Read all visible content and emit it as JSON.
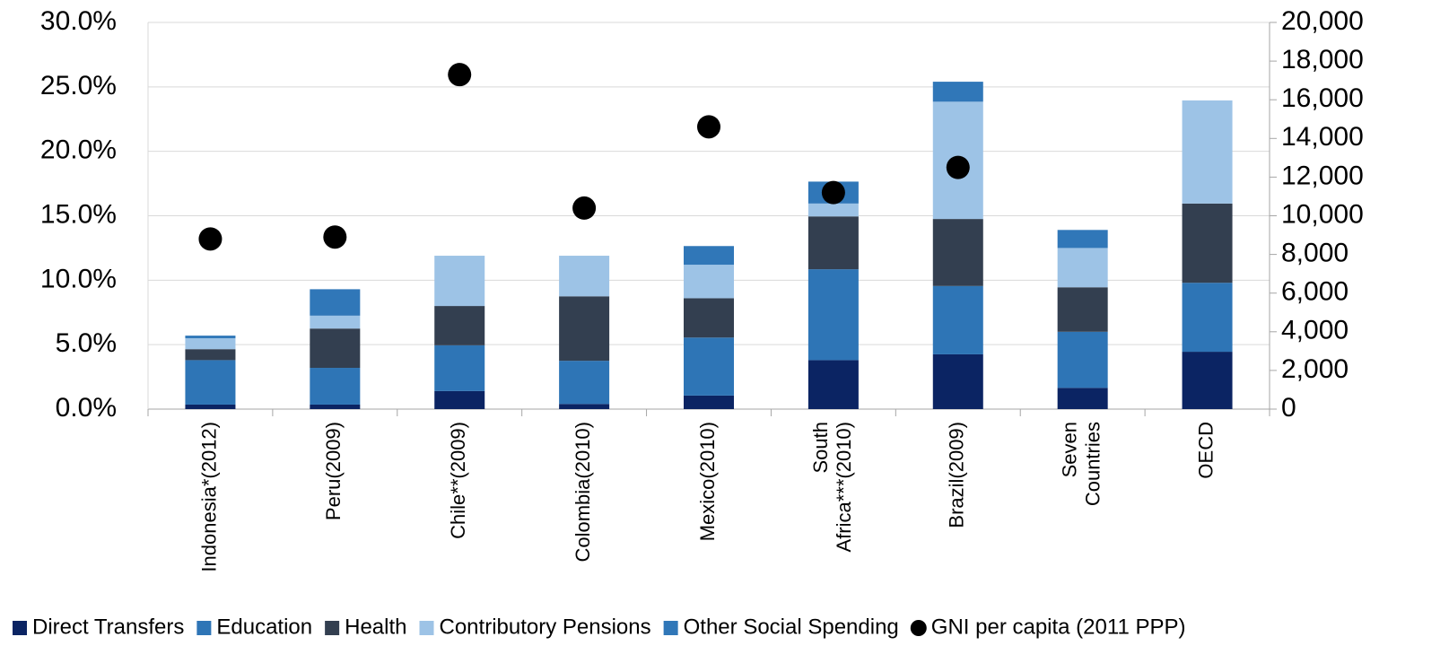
{
  "chart_data": {
    "type": "bar",
    "stacked": true,
    "categories": [
      "Indonesia*(2012)",
      "Peru(2009)",
      "Chile**(2009)",
      "Colombia(2010)",
      "Mexico(2010)",
      "South Africa***(2010)",
      "Brazil(2009)",
      "Seven Countries",
      "OECD"
    ],
    "series": [
      {
        "name": "Direct Transfers",
        "color": "#0b2463",
        "values": [
          0.35,
          0.35,
          1.4,
          0.4,
          1.05,
          3.8,
          4.25,
          1.65,
          4.45
        ]
      },
      {
        "name": "Education",
        "color": "#2e75b6",
        "values": [
          3.45,
          2.85,
          3.55,
          3.35,
          4.5,
          7.05,
          5.3,
          4.35,
          5.35
        ]
      },
      {
        "name": "Health",
        "color": "#333f50",
        "values": [
          0.85,
          3.05,
          3.05,
          5.0,
          3.05,
          4.1,
          5.2,
          3.45,
          6.15
        ]
      },
      {
        "name": "Contributory Pensions",
        "color": "#9dc3e6",
        "values": [
          0.85,
          1.0,
          3.9,
          3.15,
          2.6,
          1.0,
          9.1,
          3.05,
          8.0
        ]
      },
      {
        "name": "Other Social Spending",
        "color": "#3077b8",
        "values": [
          0.2,
          2.05,
          0,
          0,
          1.45,
          1.7,
          1.55,
          1.4,
          0
        ]
      },
      {
        "name": "GNI per capita (2011 PPP)",
        "type": "scatter",
        "axis": "y2",
        "color": "#000000",
        "values": [
          8800,
          8900,
          17300,
          10400,
          14600,
          11200,
          12500,
          null,
          null
        ]
      }
    ],
    "ylim": [
      0,
      30
    ],
    "yticks": [
      {
        "value": 0,
        "label": "0.0%"
      },
      {
        "value": 5,
        "label": "5.0%"
      },
      {
        "value": 10,
        "label": "10.0%"
      },
      {
        "value": 15,
        "label": "15.0%"
      },
      {
        "value": 20,
        "label": "20.0%"
      },
      {
        "value": 25,
        "label": "25.0%"
      },
      {
        "value": 30,
        "label": "30.0%"
      }
    ],
    "y2lim": [
      0,
      20000
    ],
    "y2ticks": [
      0,
      {
        "value": 2000,
        "label": "2,000"
      },
      {
        "value": 4000,
        "label": "4,000"
      },
      {
        "value": 6000,
        "label": "6,000"
      },
      {
        "value": 8000,
        "label": "8,000"
      },
      {
        "value": 10000,
        "label": "10,000"
      },
      {
        "value": 12000,
        "label": "12,000"
      },
      {
        "value": 14000,
        "label": "14,000"
      },
      {
        "value": 16000,
        "label": "16,000"
      },
      {
        "value": 18000,
        "label": "18,000"
      },
      {
        "value": 20000,
        "label": "20,000"
      }
    ],
    "grid": true,
    "legend": "bottom"
  }
}
